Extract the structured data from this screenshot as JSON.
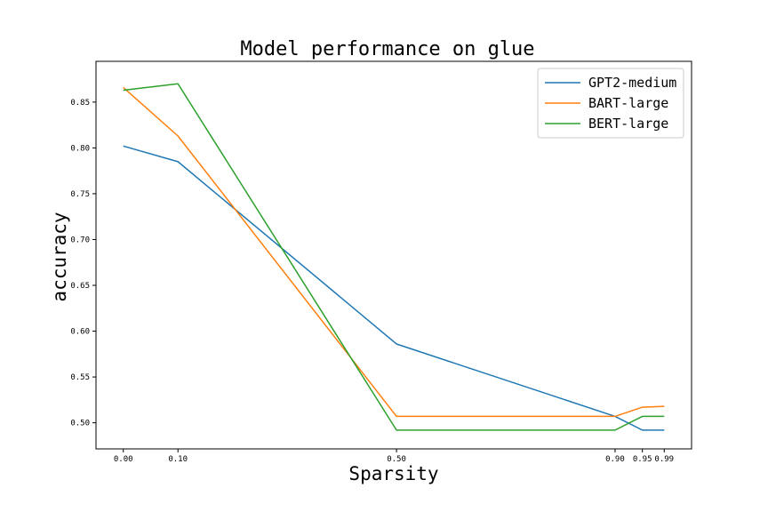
{
  "chart_data": {
    "type": "line",
    "title": "Model performance on glue",
    "xlabel": "Sparsity",
    "ylabel": "accuracy",
    "x": [
      0.0,
      0.1,
      0.5,
      0.9,
      0.95,
      0.99
    ],
    "x_tick_labels": [
      "0.00",
      "0.10",
      "0.50",
      "0.90",
      "0.95",
      "0.99"
    ],
    "y_ticks": [
      0.5,
      0.55,
      0.6,
      0.65,
      0.7,
      0.75,
      0.8,
      0.85
    ],
    "y_tick_labels": [
      "0.50",
      "0.55",
      "0.60",
      "0.65",
      "0.70",
      "0.75",
      "0.80",
      "0.85"
    ],
    "xlim": [
      -0.05,
      1.04
    ],
    "ylim": [
      0.4715,
      0.8945
    ],
    "grid": false,
    "legend_position": "top-right",
    "series": [
      {
        "name": "GPT2-medium",
        "color": "#1f77b4",
        "values": [
          0.802,
          0.785,
          0.586,
          0.507,
          0.492,
          0.492
        ]
      },
      {
        "name": "BART-large",
        "color": "#ff7f0e",
        "values": [
          0.866,
          0.813,
          0.507,
          0.507,
          0.517,
          0.518
        ]
      },
      {
        "name": "BERT-large",
        "color": "#2ca02c",
        "values": [
          0.863,
          0.87,
          0.492,
          0.492,
          0.507,
          0.507
        ]
      }
    ]
  }
}
